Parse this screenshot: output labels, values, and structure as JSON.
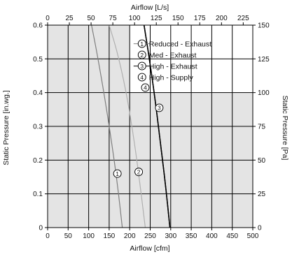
{
  "chart_data": {
    "type": "line",
    "x_bottom": {
      "label": "Airflow [cfm]",
      "range": [
        0,
        500
      ],
      "ticks": [
        "0",
        "50",
        "100",
        "150",
        "200",
        "250",
        "300",
        "350",
        "400",
        "450",
        "500"
      ]
    },
    "x_top": {
      "label": "Airflow [L/s]",
      "range": [
        0,
        236
      ],
      "ticks": [
        "0",
        "25",
        "50",
        "75",
        "100",
        "125",
        "150",
        "175",
        "200",
        "225"
      ]
    },
    "y_left": {
      "label": "Static Pressure [in.wg.]",
      "range": [
        0,
        0.6
      ],
      "ticks": [
        "0",
        "0.1",
        "0.2",
        "0.3",
        "0.4",
        "0.5",
        "0.6"
      ]
    },
    "y_right": {
      "label": "Static Pressure [Pa]",
      "range": [
        0,
        150
      ],
      "ticks": [
        "0",
        "25",
        "50",
        "75",
        "100",
        "125",
        "150"
      ]
    },
    "grid": true,
    "legend_position": "top-right",
    "series": [
      {
        "marker": "1",
        "name": "Reduced - Exhaust",
        "color": "#7f7f7f",
        "x": [
          107,
          120,
          140,
          160,
          172,
          182
        ],
        "y": [
          0.6,
          0.52,
          0.38,
          0.22,
          0.11,
          0.0
        ]
      },
      {
        "marker": "2",
        "name": "Med - Exhaust",
        "color": "#b0b0b0",
        "x": [
          150,
          170,
          192,
          212,
          226,
          238
        ],
        "y": [
          0.6,
          0.52,
          0.4,
          0.25,
          0.12,
          0.0
        ]
      },
      {
        "marker": "3",
        "name": "High - Exhaust",
        "color": "#000000",
        "x": [
          235,
          248,
          262,
          276,
          288,
          298
        ],
        "y": [
          0.6,
          0.5,
          0.38,
          0.24,
          0.12,
          0.0
        ]
      },
      {
        "marker": "4",
        "name": "High - Supply",
        "color": "#000000",
        "x": [
          235,
          248,
          262,
          276,
          288,
          298
        ],
        "y": [
          0.6,
          0.5,
          0.38,
          0.24,
          0.12,
          0.0
        ]
      }
    ],
    "annotations": [
      {
        "marker": "1",
        "x": 170,
        "y": 0.16
      },
      {
        "marker": "2",
        "x": 222,
        "y": 0.165
      },
      {
        "marker": "3",
        "x": 272,
        "y": 0.355
      },
      {
        "marker": "4",
        "x": 238,
        "y": 0.415
      }
    ],
    "colors": {
      "plot_background": "#e4e4e4",
      "grid": "#000000",
      "legend_background": "#ffffff"
    }
  }
}
